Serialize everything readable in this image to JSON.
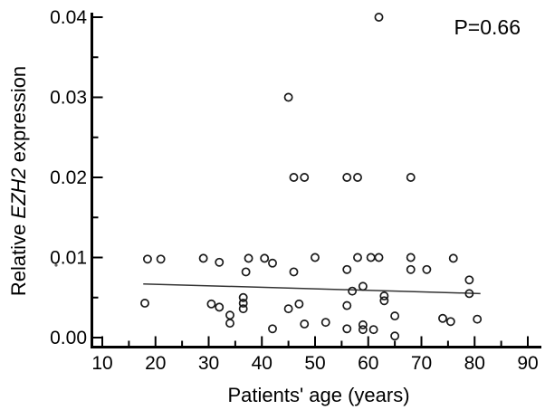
{
  "figure": {
    "background": "#ffffff",
    "axis_color": "#000000",
    "marker_color": "#1a1a1a",
    "trend_color": "#333333"
  },
  "chart_data": {
    "type": "scatter",
    "title": "",
    "xlabel": "Patients' age (years)",
    "ylabel_prefix": "Relative ",
    "ylabel_italic": "EZH2",
    "ylabel_suffix": " expression",
    "annotation": "P=0.66",
    "xlim": [
      10,
      90
    ],
    "ylim": [
      0.0,
      0.04
    ],
    "grid": false,
    "legend_position": "none",
    "marker": "open-circle",
    "x_major_ticks": [
      10,
      20,
      30,
      40,
      50,
      60,
      70,
      80,
      90
    ],
    "x_major_tick_labels": [
      "10",
      "20",
      "30",
      "40",
      "50",
      "60",
      "70",
      "80",
      "90"
    ],
    "x_minor_ticks": [
      15,
      25,
      35,
      45,
      55,
      65,
      75,
      85
    ],
    "y_major_ticks": [
      0.0,
      0.01,
      0.02,
      0.03,
      0.04
    ],
    "y_major_tick_labels": [
      "0.00",
      "0.01",
      "0.02",
      "0.03",
      "0.04"
    ],
    "y_minor_ticks": [
      0.005,
      0.015,
      0.025,
      0.035
    ],
    "points": [
      [
        18.5,
        0.0098
      ],
      [
        21,
        0.0098
      ],
      [
        29,
        0.0099
      ],
      [
        32,
        0.0094
      ],
      [
        37.5,
        0.0099
      ],
      [
        40.5,
        0.0099
      ],
      [
        42,
        0.0093
      ],
      [
        50,
        0.01
      ],
      [
        58,
        0.01
      ],
      [
        60.5,
        0.01
      ],
      [
        62,
        0.01
      ],
      [
        68,
        0.01
      ],
      [
        76,
        0.0099
      ],
      [
        37,
        0.0082
      ],
      [
        46,
        0.0082
      ],
      [
        56,
        0.0085
      ],
      [
        68,
        0.0085
      ],
      [
        71,
        0.0085
      ],
      [
        79,
        0.0072
      ],
      [
        59,
        0.0064
      ],
      [
        57,
        0.0058
      ],
      [
        79,
        0.0055
      ],
      [
        63,
        0.0052
      ],
      [
        63,
        0.0046
      ],
      [
        36.5,
        0.005
      ],
      [
        36.5,
        0.0043
      ],
      [
        36.5,
        0.0036
      ],
      [
        18,
        0.0043
      ],
      [
        30.5,
        0.0042
      ],
      [
        32,
        0.0038
      ],
      [
        45,
        0.0036
      ],
      [
        47,
        0.0042
      ],
      [
        56,
        0.004
      ],
      [
        34,
        0.0028
      ],
      [
        34,
        0.0018
      ],
      [
        42,
        0.0011
      ],
      [
        48,
        0.0017
      ],
      [
        52,
        0.0019
      ],
      [
        56,
        0.0011
      ],
      [
        59,
        0.0016
      ],
      [
        59,
        0.001
      ],
      [
        61,
        0.001
      ],
      [
        65,
        0.0027
      ],
      [
        65,
        0.0002
      ],
      [
        74,
        0.0024
      ],
      [
        75.5,
        0.002
      ],
      [
        80.5,
        0.0023
      ],
      [
        45,
        0.03
      ],
      [
        62,
        0.04
      ],
      [
        46,
        0.02
      ],
      [
        48,
        0.02
      ],
      [
        56,
        0.02
      ],
      [
        58,
        0.02
      ],
      [
        68,
        0.02
      ]
    ],
    "trend_line": {
      "x1": 17.7,
      "y1": 0.0067,
      "x2": 81.1,
      "y2": 0.0055
    }
  }
}
